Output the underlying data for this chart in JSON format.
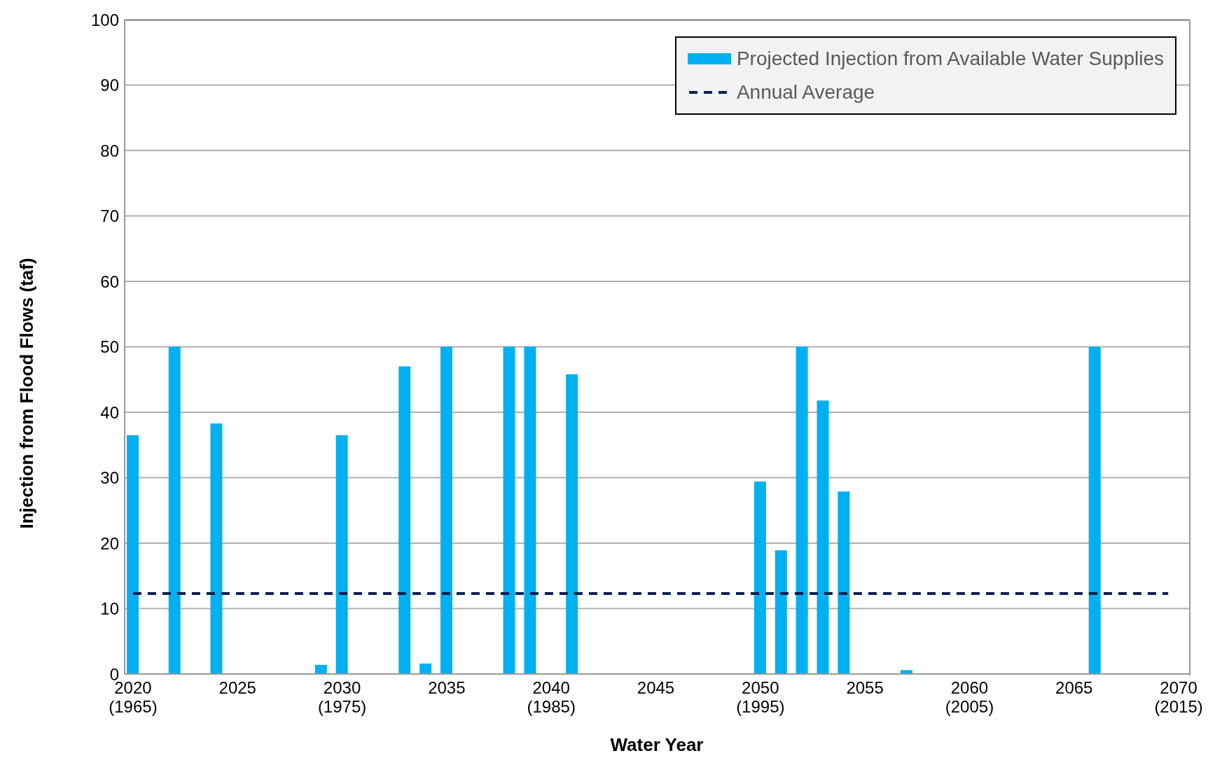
{
  "chart_data": {
    "type": "bar",
    "xlabel": "Water Year",
    "ylabel": "Injection from Flood Flows (taf)",
    "xlim": [
      2019.6,
      2070.5
    ],
    "xticks": [
      {
        "value": 2020,
        "label": "2020\n(1965)"
      },
      2025,
      {
        "value": 2030,
        "label": "2030\n(1975)"
      },
      2035,
      {
        "value": 2040,
        "label": "2040\n(1985)"
      },
      2045,
      {
        "value": 2050,
        "label": "2050\n(1995)"
      },
      2055,
      {
        "value": 2060,
        "label": "2060\n(2005)"
      },
      2065,
      {
        "value": 2070,
        "label": "2070\n(2015)"
      }
    ],
    "ylim": [
      0,
      100
    ],
    "yticks": [
      0,
      10,
      20,
      30,
      40,
      50,
      60,
      70,
      80,
      90,
      100
    ],
    "grid": "y",
    "legend": "top right",
    "series": [
      {
        "name": "Projected Injection from Available Water Supplies",
        "color": "#00b0f0",
        "x": [
          2020,
          2022,
          2024,
          2029,
          2030,
          2033,
          2034,
          2035,
          2038,
          2039,
          2041,
          2050,
          2051,
          2052,
          2053,
          2054,
          2057,
          2066
        ],
        "values": [
          36.5,
          50,
          38.3,
          1.4,
          36.5,
          47,
          1.6,
          50,
          50,
          50,
          45.8,
          29.4,
          18.9,
          50,
          41.8,
          27.9,
          0.6,
          50
        ]
      },
      {
        "name": "Annual Average",
        "type": "line",
        "color": "#0d1f4f",
        "line_style": "dashed",
        "x": [
          2020,
          2069.5
        ],
        "values": [
          12.3,
          12.3
        ]
      }
    ]
  }
}
